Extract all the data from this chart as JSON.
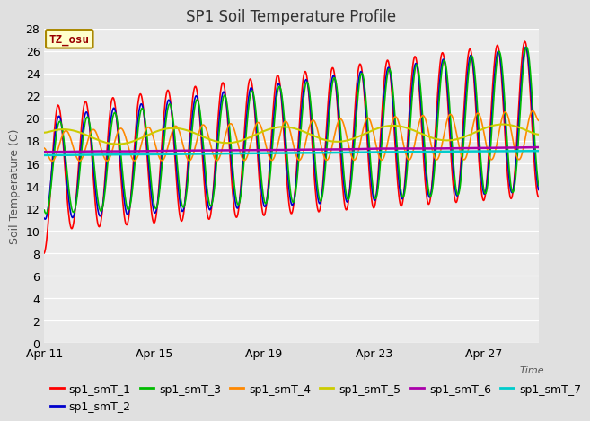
{
  "title": "SP1 Soil Temperature Profile",
  "xlabel": "Time",
  "ylabel": "Soil Temperature (C)",
  "ylim": [
    0,
    28
  ],
  "yticks": [
    0,
    2,
    4,
    6,
    8,
    10,
    12,
    14,
    16,
    18,
    20,
    22,
    24,
    26,
    28
  ],
  "xtick_labels": [
    "Apr 11",
    "Apr 15",
    "Apr 19",
    "Apr 23",
    "Apr 27"
  ],
  "xtick_positions": [
    0,
    4,
    8,
    12,
    16
  ],
  "series_colors": [
    "#ff0000",
    "#0000cc",
    "#00bb00",
    "#ff8800",
    "#cccc00",
    "#aa00aa",
    "#00cccc"
  ],
  "series_labels": [
    "sp1_smT_1",
    "sp1_smT_2",
    "sp1_smT_3",
    "sp1_smT_4",
    "sp1_smT_5",
    "sp1_smT_6",
    "sp1_smT_7"
  ],
  "tz_label": "TZ_osu",
  "fig_bg": "#e0e0e0",
  "plot_bg": "#ebebeb",
  "grid_color": "#ffffff",
  "title_fontsize": 12,
  "axis_label_fontsize": 9,
  "tick_fontsize": 9,
  "legend_fontsize": 9,
  "num_days": 18,
  "points_per_day": 48
}
